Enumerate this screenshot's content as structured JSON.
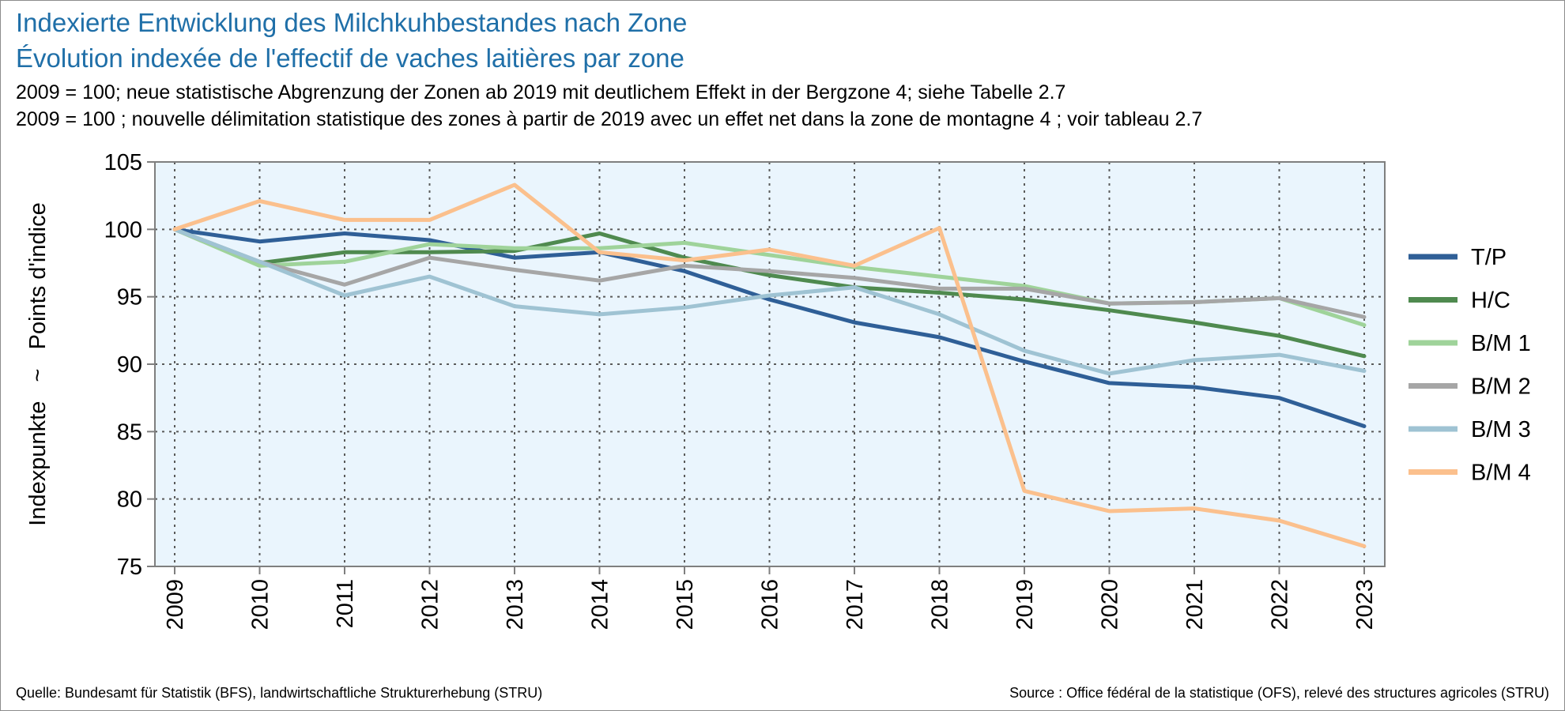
{
  "title_de": "Indexierte Entwicklung des Milchkuhbestandes nach Zone",
  "title_fr": "Évolution indexée de l'effectif de vaches laitières par zone",
  "subtitle_de": "2009 = 100; neue statistische Abgrenzung der Zonen ab 2019 mit deutlichem Effekt in der Bergzone 4; siehe Tabelle 2.7",
  "subtitle_fr": "2009 = 100 ; nouvelle délimitation statistique des zones à partir de 2019 avec un effet net dans la zone de montagne 4 ; voir tableau 2.7",
  "source_de": "Quelle: Bundesamt für Statistik (BFS), landwirtschaftliche Strukturerhebung (STRU)",
  "source_fr": "Source : Office fédéral de la statistique (OFS), relevé des structures agricoles (STRU)",
  "chart_data": {
    "type": "line",
    "ylabel": "Indexpunkte   ~   Points d'indice",
    "xlabel": "",
    "ylim": [
      75,
      105
    ],
    "yticks": [
      75,
      80,
      85,
      90,
      95,
      100,
      105
    ],
    "grid": true,
    "legend_position": "right",
    "plot_background": "#eaf5fd",
    "categories": [
      "2009",
      "2010",
      "2011",
      "2012",
      "2013",
      "2014",
      "2015",
      "2016",
      "2017",
      "2018",
      "2019",
      "2020",
      "2021",
      "2022",
      "2023"
    ],
    "series": [
      {
        "name": "T/P",
        "color": "#2f5f97",
        "values": [
          100,
          99.1,
          99.7,
          99.2,
          97.9,
          98.3,
          96.9,
          94.8,
          93.1,
          92.0,
          90.2,
          88.6,
          88.3,
          87.5,
          85.4
        ]
      },
      {
        "name": "H/C",
        "color": "#4f8a4f",
        "values": [
          100,
          97.5,
          98.3,
          98.3,
          98.4,
          99.7,
          97.9,
          96.6,
          95.7,
          95.3,
          94.8,
          94.0,
          93.1,
          92.1,
          90.6
        ]
      },
      {
        "name": "B/M 1",
        "color": "#9fd39a",
        "values": [
          100,
          97.3,
          97.6,
          98.9,
          98.6,
          98.6,
          99.0,
          98.1,
          97.2,
          96.5,
          95.8,
          94.5,
          94.6,
          94.9,
          92.9
        ]
      },
      {
        "name": "B/M 2",
        "color": "#a6a6a6",
        "values": [
          100,
          97.6,
          95.9,
          97.9,
          97.0,
          96.2,
          97.3,
          96.9,
          96.4,
          95.6,
          95.6,
          94.5,
          94.6,
          94.9,
          93.5
        ]
      },
      {
        "name": "B/M 3",
        "color": "#9fc3d3",
        "values": [
          100,
          97.6,
          95.1,
          96.5,
          94.3,
          93.7,
          94.2,
          95.1,
          95.7,
          93.7,
          91.0,
          89.3,
          90.3,
          90.7,
          89.5
        ]
      },
      {
        "name": "B/M 4",
        "color": "#fbc08d",
        "values": [
          100,
          102.1,
          100.7,
          100.7,
          103.3,
          98.3,
          97.7,
          98.5,
          97.3,
          100.1,
          80.6,
          79.1,
          79.3,
          78.4,
          76.5
        ]
      }
    ]
  }
}
